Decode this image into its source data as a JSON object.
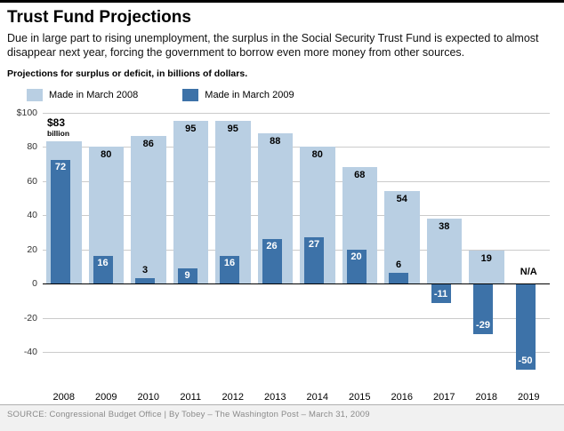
{
  "page": {
    "title": "Trust Fund Projections",
    "description": "Due in large part to rising unemployment, the surplus in the Social Security Trust Fund is expected to almost disappear next year, forcing the government to borrow even more money from other sources.",
    "note": "Projections for surplus or deficit, in billions of dollars.",
    "source": "SOURCE: Congressional Budget Office | By Tobey – The Washington Post – March 31, 2009"
  },
  "colors": {
    "series_2008": "#b9cfe3",
    "series_2009": "#3d72a8",
    "grid": "#cbcbcb",
    "zero_line": "#000000"
  },
  "chart_data": {
    "type": "bar",
    "title": "Trust Fund Projections",
    "subtitle": "Projections for surplus or deficit, in billions of dollars.",
    "categories": [
      "2008",
      "2009",
      "2010",
      "2011",
      "2012",
      "2013",
      "2014",
      "2015",
      "2016",
      "2017",
      "2018",
      "2019"
    ],
    "series": [
      {
        "name": "Made in March 2008",
        "color": "#b9cfe3",
        "values": [
          83,
          80,
          86,
          95,
          95,
          88,
          80,
          68,
          54,
          38,
          19,
          null
        ]
      },
      {
        "name": "Made in March 2009",
        "color": "#3d72a8",
        "values": [
          72,
          16,
          3,
          9,
          16,
          26,
          27,
          20,
          6,
          -11,
          -29,
          -50
        ]
      }
    ],
    "ylim": [
      -60,
      100
    ],
    "yticks": [
      100,
      80,
      60,
      40,
      20,
      0,
      -20,
      -40
    ],
    "ytick_labels": [
      "$100",
      "80",
      "60",
      "40",
      "20",
      "0",
      "-20",
      "-40"
    ],
    "grid": true,
    "legend_position": "top-left",
    "annotations": {
      "first_bar_value": "$83",
      "first_bar_unit": "billion",
      "missing_value_label": "N/A"
    }
  }
}
